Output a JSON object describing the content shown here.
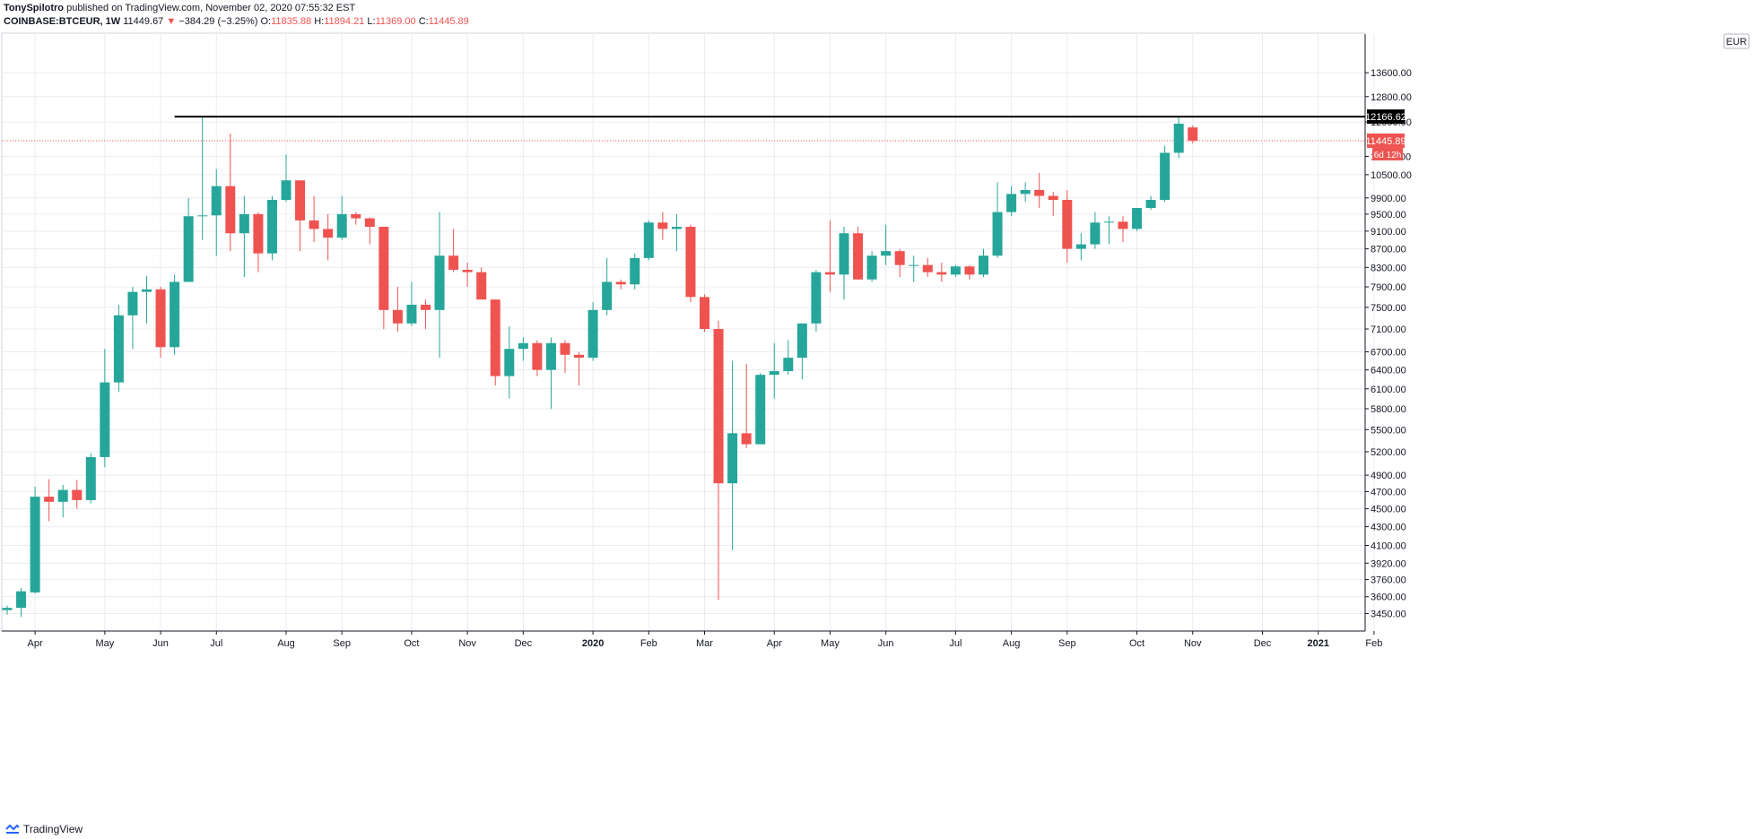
{
  "header": {
    "author": "TonySpilotro",
    "published": "published on TradingView.com, November 02, 2020 07:55:32 EST",
    "symbol": "COINBASE:BTCEUR, 1W",
    "last": "11449.67",
    "change": "−384.29 (−3.25%)",
    "o_label": "O:",
    "o_value": "11835.88",
    "h_label": "H:",
    "h_value": "11894.21",
    "l_label": "L:",
    "l_value": "11369.00",
    "c_label": "C:",
    "c_value": "11445.89"
  },
  "footer": {
    "brand": "TradingView"
  },
  "colors": {
    "up": "#26a69a",
    "down": "#ef5350",
    "grid": "#e9ecf1",
    "resistance": "#000000"
  },
  "chart_data": {
    "type": "candlestick",
    "currency": "EUR",
    "price_scale": "log",
    "ylim": [
      3300,
      15000
    ],
    "y_ticks": [
      3450,
      3600,
      3760,
      3920,
      4100,
      4300,
      4500,
      4700,
      4900,
      5200,
      5500,
      5800,
      6100,
      6400,
      6700,
      7100,
      7500,
      7900,
      8300,
      8700,
      9100,
      9500,
      9900,
      10500,
      11000,
      12000,
      12800,
      13600
    ],
    "x_labels": [
      {
        "label": "Apr",
        "week": 2
      },
      {
        "label": "May",
        "week": 7
      },
      {
        "label": "Jun",
        "week": 11
      },
      {
        "label": "Jul",
        "week": 15
      },
      {
        "label": "Aug",
        "week": 20
      },
      {
        "label": "Sep",
        "week": 24
      },
      {
        "label": "Oct",
        "week": 29
      },
      {
        "label": "Nov",
        "week": 33
      },
      {
        "label": "Dec",
        "week": 37
      },
      {
        "label": "2020",
        "week": 42
      },
      {
        "label": "Feb",
        "week": 46
      },
      {
        "label": "Mar",
        "week": 50
      },
      {
        "label": "Apr",
        "week": 55
      },
      {
        "label": "May",
        "week": 59
      },
      {
        "label": "Jun",
        "week": 63
      },
      {
        "label": "Jul",
        "week": 68
      },
      {
        "label": "Aug",
        "week": 72
      },
      {
        "label": "Sep",
        "week": 76
      },
      {
        "label": "Oct",
        "week": 81
      },
      {
        "label": "Nov",
        "week": 85
      },
      {
        "label": "Dec",
        "week": 90
      },
      {
        "label": "2021",
        "week": 94
      },
      {
        "label": "Feb",
        "week": 98
      }
    ],
    "candles": [
      {
        "o": 3480,
        "h": 3520,
        "l": 3440,
        "c": 3500
      },
      {
        "o": 3500,
        "h": 3680,
        "l": 3420,
        "c": 3650
      },
      {
        "o": 3640,
        "h": 4760,
        "l": 3630,
        "c": 4640
      },
      {
        "o": 4640,
        "h": 4850,
        "l": 4360,
        "c": 4580
      },
      {
        "o": 4580,
        "h": 4780,
        "l": 4400,
        "c": 4720
      },
      {
        "o": 4720,
        "h": 4840,
        "l": 4500,
        "c": 4600
      },
      {
        "o": 4600,
        "h": 5180,
        "l": 4560,
        "c": 5130
      },
      {
        "o": 5130,
        "h": 6750,
        "l": 5000,
        "c": 6200
      },
      {
        "o": 6200,
        "h": 7550,
        "l": 6050,
        "c": 7350
      },
      {
        "o": 7350,
        "h": 7900,
        "l": 6750,
        "c": 7800
      },
      {
        "o": 7800,
        "h": 8120,
        "l": 7200,
        "c": 7850
      },
      {
        "o": 7850,
        "h": 7900,
        "l": 6600,
        "c": 6780
      },
      {
        "o": 6780,
        "h": 8150,
        "l": 6650,
        "c": 8000
      },
      {
        "o": 8000,
        "h": 9900,
        "l": 8000,
        "c": 9450
      },
      {
        "o": 9450,
        "h": 12150,
        "l": 8900,
        "c": 9470
      },
      {
        "o": 9470,
        "h": 10650,
        "l": 8550,
        "c": 10200
      },
      {
        "o": 10200,
        "h": 11650,
        "l": 8650,
        "c": 9050
      },
      {
        "o": 9050,
        "h": 9950,
        "l": 8100,
        "c": 9500
      },
      {
        "o": 9500,
        "h": 9550,
        "l": 8200,
        "c": 8600
      },
      {
        "o": 8600,
        "h": 9950,
        "l": 8450,
        "c": 9850
      },
      {
        "o": 9850,
        "h": 11050,
        "l": 9800,
        "c": 10350
      },
      {
        "o": 10350,
        "h": 10350,
        "l": 8650,
        "c": 9350
      },
      {
        "o": 9350,
        "h": 9950,
        "l": 8850,
        "c": 9150
      },
      {
        "o": 9150,
        "h": 9500,
        "l": 8450,
        "c": 8950
      },
      {
        "o": 8950,
        "h": 9950,
        "l": 8900,
        "c": 9500
      },
      {
        "o": 9500,
        "h": 9550,
        "l": 9250,
        "c": 9400
      },
      {
        "o": 9400,
        "h": 9420,
        "l": 8800,
        "c": 9200
      },
      {
        "o": 9200,
        "h": 9200,
        "l": 7100,
        "c": 7450
      },
      {
        "o": 7450,
        "h": 7900,
        "l": 7050,
        "c": 7200
      },
      {
        "o": 7200,
        "h": 8000,
        "l": 7150,
        "c": 7550
      },
      {
        "o": 7550,
        "h": 7650,
        "l": 7100,
        "c": 7450
      },
      {
        "o": 7450,
        "h": 9550,
        "l": 6600,
        "c": 8550
      },
      {
        "o": 8550,
        "h": 9150,
        "l": 8200,
        "c": 8250
      },
      {
        "o": 8250,
        "h": 8400,
        "l": 7900,
        "c": 8200
      },
      {
        "o": 8200,
        "h": 8300,
        "l": 7700,
        "c": 7650
      },
      {
        "o": 7650,
        "h": 7650,
        "l": 6150,
        "c": 6300
      },
      {
        "o": 6300,
        "h": 7150,
        "l": 5950,
        "c": 6750
      },
      {
        "o": 6750,
        "h": 6950,
        "l": 6550,
        "c": 6850
      },
      {
        "o": 6850,
        "h": 6900,
        "l": 6300,
        "c": 6400
      },
      {
        "o": 6400,
        "h": 6950,
        "l": 5800,
        "c": 6850
      },
      {
        "o": 6850,
        "h": 6900,
        "l": 6350,
        "c": 6650
      },
      {
        "o": 6650,
        "h": 6700,
        "l": 6150,
        "c": 6600
      },
      {
        "o": 6600,
        "h": 7600,
        "l": 6550,
        "c": 7450
      },
      {
        "o": 7450,
        "h": 8500,
        "l": 7350,
        "c": 8000
      },
      {
        "o": 8000,
        "h": 8050,
        "l": 7850,
        "c": 7950
      },
      {
        "o": 7950,
        "h": 8600,
        "l": 7850,
        "c": 8500
      },
      {
        "o": 8500,
        "h": 9350,
        "l": 8450,
        "c": 9300
      },
      {
        "o": 9300,
        "h": 9550,
        "l": 8900,
        "c": 9150
      },
      {
        "o": 9150,
        "h": 9500,
        "l": 8650,
        "c": 9200
      },
      {
        "o": 9200,
        "h": 9250,
        "l": 7600,
        "c": 7700
      },
      {
        "o": 7700,
        "h": 7750,
        "l": 7050,
        "c": 7100
      },
      {
        "o": 7100,
        "h": 7250,
        "l": 3570,
        "c": 4800
      },
      {
        "o": 4800,
        "h": 6550,
        "l": 4050,
        "c": 5450
      },
      {
        "o": 5450,
        "h": 6500,
        "l": 5250,
        "c": 5300
      },
      {
        "o": 5300,
        "h": 6350,
        "l": 5300,
        "c": 6320
      },
      {
        "o": 6320,
        "h": 6850,
        "l": 5950,
        "c": 6380
      },
      {
        "o": 6380,
        "h": 6900,
        "l": 6320,
        "c": 6600
      },
      {
        "o": 6600,
        "h": 7200,
        "l": 6250,
        "c": 7200
      },
      {
        "o": 7200,
        "h": 8250,
        "l": 7050,
        "c": 8200
      },
      {
        "o": 8200,
        "h": 9350,
        "l": 7800,
        "c": 8150
      },
      {
        "o": 8150,
        "h": 9200,
        "l": 7650,
        "c": 9050
      },
      {
        "o": 9050,
        "h": 9200,
        "l": 8050,
        "c": 8050
      },
      {
        "o": 8050,
        "h": 8650,
        "l": 8000,
        "c": 8550
      },
      {
        "o": 8550,
        "h": 9250,
        "l": 8350,
        "c": 8650
      },
      {
        "o": 8650,
        "h": 8700,
        "l": 8100,
        "c": 8350
      },
      {
        "o": 8350,
        "h": 8550,
        "l": 8000,
        "c": 8350
      },
      {
        "o": 8350,
        "h": 8500,
        "l": 8100,
        "c": 8200
      },
      {
        "o": 8200,
        "h": 8400,
        "l": 8000,
        "c": 8150
      },
      {
        "o": 8150,
        "h": 8350,
        "l": 8100,
        "c": 8320
      },
      {
        "o": 8320,
        "h": 8350,
        "l": 8050,
        "c": 8150
      },
      {
        "o": 8150,
        "h": 8700,
        "l": 8100,
        "c": 8550
      },
      {
        "o": 8550,
        "h": 10300,
        "l": 8500,
        "c": 9550
      },
      {
        "o": 9550,
        "h": 10200,
        "l": 9450,
        "c": 10000
      },
      {
        "o": 10000,
        "h": 10300,
        "l": 9800,
        "c": 10100
      },
      {
        "o": 10100,
        "h": 10550,
        "l": 9650,
        "c": 9950
      },
      {
        "o": 9950,
        "h": 10050,
        "l": 9450,
        "c": 9850
      },
      {
        "o": 9850,
        "h": 10100,
        "l": 8400,
        "c": 8700
      },
      {
        "o": 8700,
        "h": 9050,
        "l": 8450,
        "c": 8800
      },
      {
        "o": 8800,
        "h": 9550,
        "l": 8700,
        "c": 9300
      },
      {
        "o": 9300,
        "h": 9450,
        "l": 8800,
        "c": 9320
      },
      {
        "o": 9320,
        "h": 9450,
        "l": 8850,
        "c": 9150
      },
      {
        "o": 9150,
        "h": 9650,
        "l": 9100,
        "c": 9650
      },
      {
        "o": 9650,
        "h": 9950,
        "l": 9600,
        "c": 9850
      },
      {
        "o": 9850,
        "h": 11300,
        "l": 9800,
        "c": 11100
      },
      {
        "o": 11100,
        "h": 12150,
        "l": 10950,
        "c": 11950
      },
      {
        "o": 11835.88,
        "h": 11894.21,
        "l": 11369.0,
        "c": 11445.89
      }
    ],
    "resistance": {
      "price": 12166.62,
      "label": "12166.62",
      "from_week": 12
    },
    "last_price": {
      "price": 11445.89,
      "label": "11445.89",
      "countdown": "6d 12h"
    }
  }
}
